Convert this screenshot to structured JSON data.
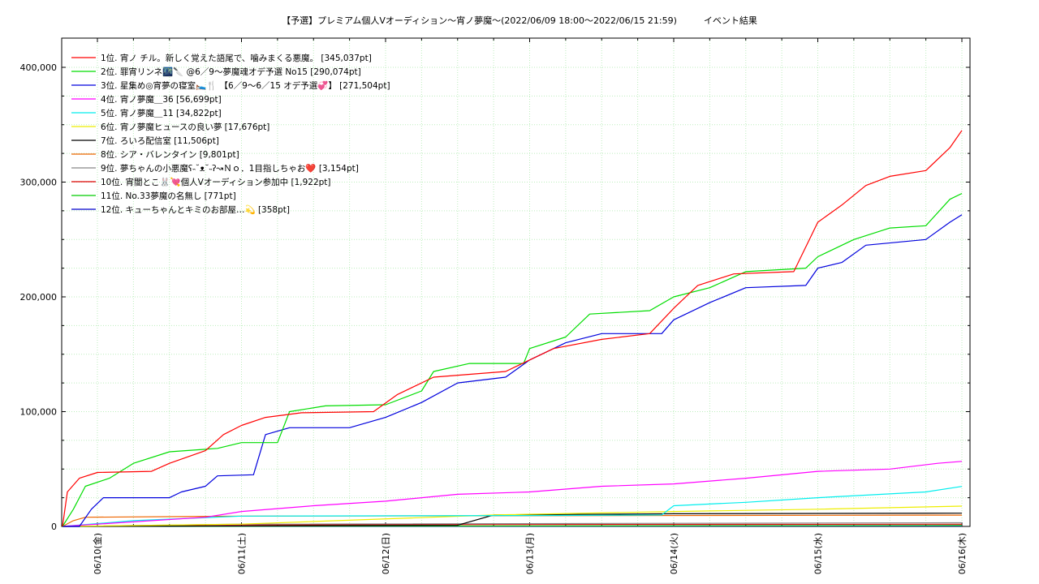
{
  "chart_data": {
    "type": "line",
    "title": "【予選】プレミアム個人Vオーディション〜宵ノ夢魔～(2022/06/09 18:00～2022/06/15 21:59)　　　イベント結果",
    "xlabel": "",
    "ylabel": "",
    "x_ticks": [
      "06/10(金)",
      "06/11(土)",
      "06/12(日)",
      "06/13(月)",
      "06/14(火)",
      "06/15(水)",
      "06/16(木)"
    ],
    "y_ticks": [
      "0",
      "100,000",
      "200,000",
      "300,000",
      "400,000"
    ],
    "xlim": [
      "2022-06-09 18:00",
      "2022-06-16 00:00"
    ],
    "ylim": [
      0,
      420000
    ],
    "grid": true,
    "legend_position": "top-left",
    "series": [
      {
        "name": "1位. 宵ノ チル。新しく覚えた語尾で、噛みまくる悪魔。 [345,037pt]",
        "color": "#ff0000",
        "points": [
          [
            "2022-06-09 18:00",
            0
          ],
          [
            "2022-06-09 19:00",
            30000
          ],
          [
            "2022-06-09 21:00",
            42000
          ],
          [
            "2022-06-10 00:00",
            47000
          ],
          [
            "2022-06-10 09:00",
            48000
          ],
          [
            "2022-06-10 12:00",
            55000
          ],
          [
            "2022-06-10 18:00",
            66000
          ],
          [
            "2022-06-10 21:00",
            80000
          ],
          [
            "2022-06-11 00:00",
            88000
          ],
          [
            "2022-06-11 04:00",
            95000
          ],
          [
            "2022-06-11 10:00",
            99000
          ],
          [
            "2022-06-11 22:00",
            100000
          ],
          [
            "2022-06-12 02:00",
            115000
          ],
          [
            "2022-06-12 08:00",
            130000
          ],
          [
            "2022-06-12 20:00",
            135000
          ],
          [
            "2022-06-13 00:00",
            145000
          ],
          [
            "2022-06-13 04:00",
            155000
          ],
          [
            "2022-06-13 12:00",
            163000
          ],
          [
            "2022-06-13 20:00",
            168000
          ],
          [
            "2022-06-14 00:00",
            190000
          ],
          [
            "2022-06-14 04:00",
            210000
          ],
          [
            "2022-06-14 10:00",
            220000
          ],
          [
            "2022-06-14 20:00",
            222000
          ],
          [
            "2022-06-15 00:00",
            265000
          ],
          [
            "2022-06-15 04:00",
            280000
          ],
          [
            "2022-06-15 08:00",
            297000
          ],
          [
            "2022-06-15 12:00",
            305000
          ],
          [
            "2022-06-15 18:00",
            310000
          ],
          [
            "2022-06-15 22:00",
            330000
          ],
          [
            "2022-06-16 00:00",
            345037
          ]
        ]
      },
      {
        "name": "2位. 罪宵リンネ🌃🔪 @6／9〜夢魔魂オデ予選 No15 [290,074pt]",
        "color": "#00dd00",
        "points": [
          [
            "2022-06-09 18:00",
            0
          ],
          [
            "2022-06-09 20:00",
            15000
          ],
          [
            "2022-06-09 22:00",
            35000
          ],
          [
            "2022-06-10 02:00",
            42000
          ],
          [
            "2022-06-10 06:00",
            55000
          ],
          [
            "2022-06-10 12:00",
            65000
          ],
          [
            "2022-06-10 20:00",
            68000
          ],
          [
            "2022-06-11 00:00",
            73000
          ],
          [
            "2022-06-11 06:00",
            73000
          ],
          [
            "2022-06-11 08:00",
            100000
          ],
          [
            "2022-06-11 14:00",
            105000
          ],
          [
            "2022-06-12 00:00",
            106000
          ],
          [
            "2022-06-12 06:00",
            118000
          ],
          [
            "2022-06-12 08:00",
            135000
          ],
          [
            "2022-06-12 14:00",
            142000
          ],
          [
            "2022-06-12 23:00",
            142000
          ],
          [
            "2022-06-13 00:00",
            155000
          ],
          [
            "2022-06-13 06:00",
            165000
          ],
          [
            "2022-06-13 10:00",
            185000
          ],
          [
            "2022-06-13 20:00",
            188000
          ],
          [
            "2022-06-14 00:00",
            200000
          ],
          [
            "2022-06-14 06:00",
            208000
          ],
          [
            "2022-06-14 12:00",
            222000
          ],
          [
            "2022-06-14 22:00",
            225000
          ],
          [
            "2022-06-15 00:00",
            235000
          ],
          [
            "2022-06-15 06:00",
            250000
          ],
          [
            "2022-06-15 12:00",
            260000
          ],
          [
            "2022-06-15 18:00",
            262000
          ],
          [
            "2022-06-15 22:00",
            285000
          ],
          [
            "2022-06-16 00:00",
            290074
          ]
        ]
      },
      {
        "name": "3位. 星集め◎宵夢の寝室🛌🍴 【6／9〜6／15 オデ予選💞】 [271,504pt]",
        "color": "#0000dd",
        "points": [
          [
            "2022-06-09 18:00",
            0
          ],
          [
            "2022-06-09 21:00",
            0
          ],
          [
            "2022-06-09 23:00",
            15000
          ],
          [
            "2022-06-10 01:00",
            25000
          ],
          [
            "2022-06-10 12:00",
            25000
          ],
          [
            "2022-06-10 14:00",
            30000
          ],
          [
            "2022-06-10 18:00",
            35000
          ],
          [
            "2022-06-10 20:00",
            44000
          ],
          [
            "2022-06-11 02:00",
            45000
          ],
          [
            "2022-06-11 04:00",
            80000
          ],
          [
            "2022-06-11 08:00",
            86000
          ],
          [
            "2022-06-11 18:00",
            86000
          ],
          [
            "2022-06-12 00:00",
            95000
          ],
          [
            "2022-06-12 06:00",
            108000
          ],
          [
            "2022-06-12 12:00",
            125000
          ],
          [
            "2022-06-12 20:00",
            130000
          ],
          [
            "2022-06-13 00:00",
            145000
          ],
          [
            "2022-06-13 06:00",
            160000
          ],
          [
            "2022-06-13 12:00",
            168000
          ],
          [
            "2022-06-13 22:00",
            168000
          ],
          [
            "2022-06-14 00:00",
            180000
          ],
          [
            "2022-06-14 06:00",
            195000
          ],
          [
            "2022-06-14 12:00",
            208000
          ],
          [
            "2022-06-14 22:00",
            210000
          ],
          [
            "2022-06-15 00:00",
            225000
          ],
          [
            "2022-06-15 04:00",
            230000
          ],
          [
            "2022-06-15 08:00",
            245000
          ],
          [
            "2022-06-15 18:00",
            250000
          ],
          [
            "2022-06-15 22:00",
            265000
          ],
          [
            "2022-06-16 00:00",
            271504
          ]
        ]
      },
      {
        "name": "4位. 宵ノ夢魔＿36 [56,699pt]",
        "color": "#ff00ff",
        "points": [
          [
            "2022-06-09 18:00",
            0
          ],
          [
            "2022-06-10 00:00",
            2000
          ],
          [
            "2022-06-10 18:00",
            8000
          ],
          [
            "2022-06-11 00:00",
            13000
          ],
          [
            "2022-06-11 12:00",
            18000
          ],
          [
            "2022-06-12 00:00",
            22000
          ],
          [
            "2022-06-12 12:00",
            28000
          ],
          [
            "2022-06-13 00:00",
            30000
          ],
          [
            "2022-06-13 12:00",
            35000
          ],
          [
            "2022-06-14 00:00",
            37000
          ],
          [
            "2022-06-14 12:00",
            42000
          ],
          [
            "2022-06-15 00:00",
            48000
          ],
          [
            "2022-06-15 12:00",
            50000
          ],
          [
            "2022-06-15 20:00",
            55000
          ],
          [
            "2022-06-16 00:00",
            56699
          ]
        ]
      },
      {
        "name": "5位. 宵ノ夢魔＿11 [34,822pt]",
        "color": "#00eeee",
        "points": [
          [
            "2022-06-09 18:00",
            0
          ],
          [
            "2022-06-10 06:00",
            5000
          ],
          [
            "2022-06-11 00:00",
            9000
          ],
          [
            "2022-06-13 00:00",
            9500
          ],
          [
            "2022-06-13 22:00",
            10000
          ],
          [
            "2022-06-14 00:00",
            18000
          ],
          [
            "2022-06-14 12:00",
            21000
          ],
          [
            "2022-06-15 00:00",
            25000
          ],
          [
            "2022-06-15 18:00",
            30000
          ],
          [
            "2022-06-16 00:00",
            34822
          ]
        ]
      },
      {
        "name": "6位. 宵ノ夢魔ヒュースの良い夢 [17,676pt]",
        "color": "#eeee00",
        "points": [
          [
            "2022-06-09 18:00",
            0
          ],
          [
            "2022-06-11 00:00",
            2000
          ],
          [
            "2022-06-12 18:00",
            10000
          ],
          [
            "2022-06-14 00:00",
            13000
          ],
          [
            "2022-06-15 00:00",
            15000
          ],
          [
            "2022-06-16 00:00",
            17676
          ]
        ]
      },
      {
        "name": "7位. ろいろ配信室 [11,506pt]",
        "color": "#000000",
        "points": [
          [
            "2022-06-09 18:00",
            0
          ],
          [
            "2022-06-12 12:00",
            1000
          ],
          [
            "2022-06-12 18:00",
            10000
          ],
          [
            "2022-06-14 00:00",
            11000
          ],
          [
            "2022-06-16 00:00",
            11506
          ]
        ]
      },
      {
        "name": "8位. シア・バレンタイン [9,801pt]",
        "color": "#ee6600",
        "points": [
          [
            "2022-06-09 18:00",
            0
          ],
          [
            "2022-06-09 20:00",
            5000
          ],
          [
            "2022-06-09 22:00",
            8000
          ],
          [
            "2022-06-11 00:00",
            9000
          ],
          [
            "2022-06-16 00:00",
            9801
          ]
        ]
      },
      {
        "name": "9位. 夢ちゃんの小悪魔ʕ˵˘ᴥ˘˵ʔ↝Ｎｏ．1目指しちゃお❤️ [3,154pt]",
        "color": "#888888",
        "points": [
          [
            "2022-06-09 18:00",
            0
          ],
          [
            "2022-06-11 00:00",
            2000
          ],
          [
            "2022-06-16 00:00",
            3154
          ]
        ]
      },
      {
        "name": "10位. 宵闇とこ🐰💘個人Vオーディション参加中 [1,922pt]",
        "color": "#dd0000",
        "points": [
          [
            "2022-06-09 18:00",
            0
          ],
          [
            "2022-06-11 00:00",
            1500
          ],
          [
            "2022-06-16 00:00",
            1922
          ]
        ]
      },
      {
        "name": "11位. No.33夢魔の名無し [771pt]",
        "color": "#00cc00",
        "points": [
          [
            "2022-06-09 18:00",
            0
          ],
          [
            "2022-06-16 00:00",
            771
          ]
        ]
      },
      {
        "name": "12位. キューちゃんとキミのお部屋…💫 [358pt]",
        "color": "#0000cc",
        "points": [
          [
            "2022-06-09 18:00",
            0
          ],
          [
            "2022-06-16 00:00",
            358
          ]
        ]
      }
    ]
  }
}
